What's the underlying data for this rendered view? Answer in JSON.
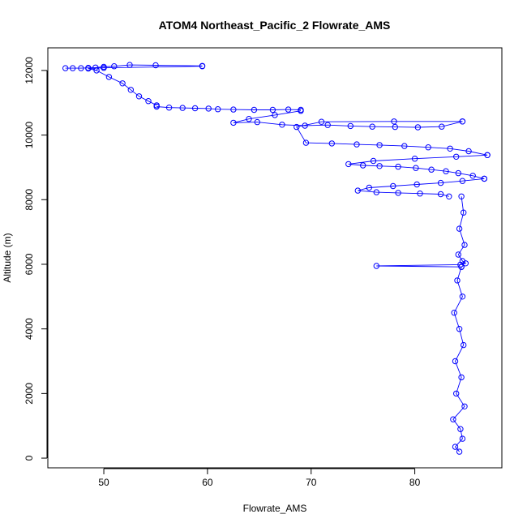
{
  "chart_data": {
    "type": "scatter",
    "title": "ATOM4 Northeast_Pacific_2 Flowrate_AMS",
    "xlabel": "Flowrate_AMS",
    "ylabel": "Altitude (m)",
    "xlim": [
      44.6,
      88.4
    ],
    "ylim": [
      -300,
      12700
    ],
    "x_ticks": [
      50,
      60,
      70,
      80
    ],
    "y_ticks": [
      0,
      2000,
      4000,
      6000,
      8000,
      10000,
      12000
    ],
    "point_color": "#0000ff",
    "line_color": "#0000ff",
    "marker": "open-circle",
    "connected": true,
    "grid": false,
    "legend": "none",
    "series": [
      {
        "segments": [
          {
            "x": [
              46.3,
              47.0,
              47.8,
              48.5,
              49.2,
              50.0,
              51.0,
              52.5,
              55.0,
              59.5
            ],
            "y": [
              12070,
              12070,
              12070,
              12080,
              12090,
              12110,
              12130,
              12170,
              12160,
              12140
            ]
          },
          {
            "x": [
              59.5,
              50.0,
              48.5,
              49.3,
              50.5,
              51.8,
              52.6,
              53.4,
              54.3,
              55.1
            ],
            "y": [
              12130,
              12080,
              12060,
              12000,
              11800,
              11600,
              11400,
              11200,
              11050,
              10920
            ]
          },
          {
            "x": [
              55.1,
              56.3,
              57.6,
              58.8,
              60.1,
              61.0,
              62.5,
              64.5,
              66.3,
              67.8,
              69.0
            ],
            "y": [
              10880,
              10850,
              10840,
              10830,
              10820,
              10800,
              10790,
              10780,
              10780,
              10790,
              10780
            ]
          },
          {
            "x": [
              69.0,
              66.5,
              64.0,
              62.5,
              64.8,
              67.2,
              69.4,
              71.6,
              73.8,
              75.9,
              78.1,
              80.3,
              82.6,
              84.6
            ],
            "y": [
              10750,
              10620,
              10500,
              10380,
              10400,
              10320,
              10290,
              10310,
              10280,
              10260,
              10250,
              10240,
              10260,
              10420
            ]
          },
          {
            "x": [
              84.6,
              78.0,
              71.0,
              68.6,
              69.5,
              72.0,
              74.4,
              76.6,
              79.0,
              81.3,
              83.4,
              85.2,
              87.0
            ],
            "y": [
              10420,
              10420,
              10410,
              10250,
              9760,
              9740,
              9710,
              9690,
              9660,
              9620,
              9580,
              9500,
              9380
            ]
          },
          {
            "x": [
              87.0,
              84.0,
              80.0,
              76.0,
              73.6,
              75.0,
              76.6,
              78.4,
              80.1,
              81.6,
              83.0,
              84.2,
              85.6,
              86.7
            ],
            "y": [
              9380,
              9330,
              9270,
              9200,
              9100,
              9060,
              9040,
              9020,
              8980,
              8930,
              8880,
              8820,
              8740,
              8650
            ]
          },
          {
            "x": [
              86.7,
              84.6,
              82.5,
              80.2,
              77.9,
              75.6,
              74.5,
              76.3,
              78.4,
              80.5,
              82.5,
              83.3
            ],
            "y": [
              8650,
              8580,
              8520,
              8470,
              8420,
              8370,
              8280,
              8230,
              8210,
              8190,
              8170,
              8100
            ]
          },
          {
            "x": [
              84.5,
              84.7,
              84.3,
              84.8,
              84.2,
              84.6,
              84.9,
              84.4,
              76.3,
              84.5
            ],
            "y": [
              8100,
              7600,
              7100,
              6600,
              6300,
              6100,
              6030,
              5990,
              5950,
              5920
            ]
          },
          {
            "x": [
              84.5,
              84.1,
              84.6,
              83.8,
              84.3,
              84.7,
              83.9,
              84.5,
              84.0,
              84.8,
              83.7,
              84.4,
              84.6,
              83.9,
              84.3
            ],
            "y": [
              5920,
              5500,
              5000,
              4500,
              4000,
              3500,
              3000,
              2500,
              2000,
              1600,
              1200,
              900,
              600,
              350,
              200
            ]
          }
        ]
      }
    ]
  }
}
